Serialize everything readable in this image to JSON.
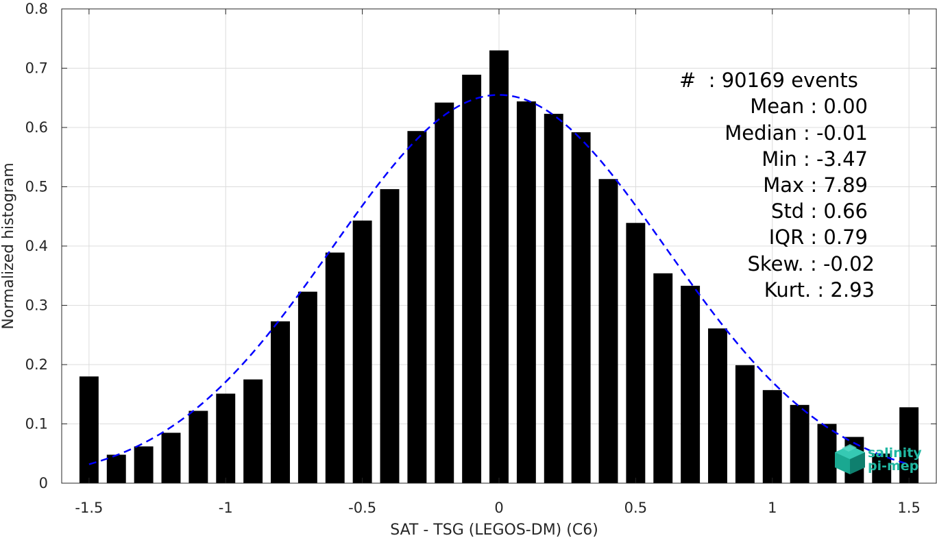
{
  "chart_data": {
    "type": "bar",
    "title": "",
    "xlabel": "SAT - TSG (LEGOS-DM) (C6)",
    "ylabel": "Normalized histogram",
    "xlim": [
      -1.6,
      1.6
    ],
    "ylim": [
      0,
      0.8
    ],
    "grid": true,
    "x_ticks": [
      -1.5,
      -1,
      -0.5,
      0,
      0.5,
      1,
      1.5
    ],
    "x_tick_labels": [
      "-1.5",
      "-1",
      "-0.5",
      "0",
      "0.5",
      "1",
      "1.5"
    ],
    "y_ticks": [
      0,
      0.1,
      0.2,
      0.3,
      0.4,
      0.5,
      0.6,
      0.7,
      0.8
    ],
    "y_tick_labels": [
      "0",
      "0.1",
      "0.2",
      "0.3",
      "0.4",
      "0.5",
      "0.6",
      "0.7",
      "0.8"
    ],
    "bar_width": 0.07,
    "bars": {
      "x": [
        -1.5,
        -1.4,
        -1.3,
        -1.2,
        -1.1,
        -1.0,
        -0.9,
        -0.8,
        -0.7,
        -0.6,
        -0.5,
        -0.4,
        -0.3,
        -0.2,
        -0.1,
        0.0,
        0.1,
        0.2,
        0.3,
        0.4,
        0.5,
        0.6,
        0.7,
        0.8,
        0.9,
        1.0,
        1.1,
        1.2,
        1.3,
        1.4,
        1.5
      ],
      "values": [
        0.18,
        0.048,
        0.062,
        0.085,
        0.122,
        0.151,
        0.175,
        0.273,
        0.323,
        0.389,
        0.443,
        0.496,
        0.594,
        0.642,
        0.689,
        0.73,
        0.644,
        0.623,
        0.592,
        0.513,
        0.439,
        0.354,
        0.333,
        0.261,
        0.199,
        0.157,
        0.132,
        0.1,
        0.078,
        0.05,
        0.128
      ],
      "color": "#000000"
    },
    "fit": {
      "type": "gaussian",
      "style": "dashed",
      "color": "#0000ff",
      "mean": 0.0,
      "std": 0.61,
      "peak": 0.655,
      "x_range": [
        -1.5,
        1.5
      ]
    },
    "stats": [
      "#  : 90169 events",
      "Mean : 0.00",
      "Median : -0.01",
      "Min : -3.47",
      "Max : 7.89",
      "Std : 0.66",
      "IQR : 0.79",
      "Skew. : -0.02",
      "Kurt. : 2.93"
    ]
  },
  "logo": {
    "icon": "salinity-cube-icon",
    "line1": "salinity",
    "line2": "pi-mep",
    "color": "#20b7a2"
  }
}
